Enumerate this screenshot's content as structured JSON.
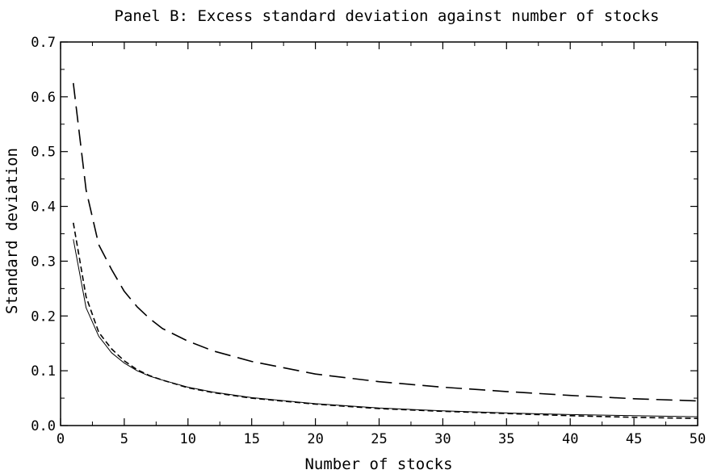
{
  "chart_data": {
    "type": "line",
    "title": "Panel B: Excess standard deviation against number of stocks",
    "xlabel": "Number of stocks",
    "ylabel": "Standard deviation",
    "xlim": [
      0,
      50
    ],
    "ylim": [
      0,
      0.7
    ],
    "x_ticks": [
      "0",
      "5",
      "10",
      "15",
      "20",
      "25",
      "30",
      "35",
      "40",
      "45",
      "50"
    ],
    "y_ticks": [
      "0.0",
      "0.1",
      "0.2",
      "0.3",
      "0.4",
      "0.5",
      "0.6",
      "0.7"
    ],
    "grid": false,
    "legend": "none",
    "x": [
      1,
      2,
      3,
      4,
      5,
      6,
      7,
      8,
      10,
      12,
      15,
      20,
      25,
      30,
      35,
      40,
      45,
      50
    ],
    "series": [
      {
        "style": "solid",
        "values": [
          0.34,
          0.215,
          0.163,
          0.133,
          0.114,
          0.1,
          0.09,
          0.083,
          0.07,
          0.061,
          0.051,
          0.04,
          0.032,
          0.027,
          0.023,
          0.02,
          0.018,
          0.016
        ]
      },
      {
        "style": "short-dash",
        "values": [
          0.37,
          0.235,
          0.17,
          0.14,
          0.118,
          0.102,
          0.091,
          0.083,
          0.069,
          0.06,
          0.05,
          0.039,
          0.031,
          0.026,
          0.022,
          0.018,
          0.015,
          0.013
        ]
      },
      {
        "style": "long-dash",
        "values": [
          0.625,
          0.43,
          0.33,
          0.285,
          0.245,
          0.217,
          0.195,
          0.177,
          0.154,
          0.136,
          0.117,
          0.094,
          0.08,
          0.07,
          0.062,
          0.055,
          0.049,
          0.045
        ]
      }
    ]
  }
}
